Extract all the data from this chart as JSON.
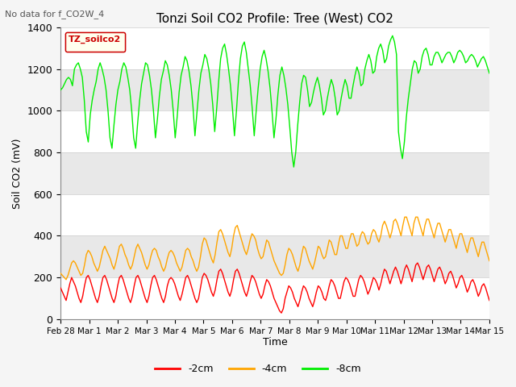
{
  "title": "Tonzi Soil CO2 Profile: Tree (West) CO2",
  "no_data_label": "No data for f_CO2W_4",
  "ylabel": "Soil CO2 (mV)",
  "xlabel": "Time",
  "ylim": [
    0,
    1400
  ],
  "legend_box_label": "TZ_soilco2",
  "line_labels": [
    "-2cm",
    "-4cm",
    "-8cm"
  ],
  "line_colors": [
    "#ff0000",
    "#ffa500",
    "#00ee00"
  ],
  "x_tick_labels": [
    "Feb 28",
    "Mar 1",
    "Mar 2",
    "Mar 3",
    "Mar 4",
    "Mar 5",
    "Mar 6",
    "Mar 7",
    "Mar 8",
    "Mar 9",
    "Mar 10",
    "Mar 11",
    "Mar 12",
    "Mar 13",
    "Mar 14",
    "Mar 15"
  ],
  "band_edges": [
    0,
    200,
    400,
    600,
    800,
    1000,
    1200,
    1400
  ],
  "band_colors": [
    "#ffffff",
    "#e8e8e8",
    "#ffffff",
    "#e8e8e8",
    "#ffffff",
    "#e8e8e8",
    "#ffffff"
  ],
  "yticks": [
    0,
    200,
    400,
    600,
    800,
    1000,
    1200,
    1400
  ],
  "series_2cm": [
    150,
    130,
    110,
    90,
    130,
    170,
    200,
    180,
    160,
    130,
    100,
    80,
    110,
    160,
    200,
    210,
    190,
    160,
    130,
    100,
    80,
    110,
    160,
    200,
    210,
    190,
    160,
    130,
    100,
    80,
    110,
    160,
    200,
    210,
    190,
    160,
    130,
    100,
    80,
    110,
    160,
    200,
    210,
    190,
    160,
    130,
    100,
    80,
    110,
    160,
    200,
    210,
    190,
    160,
    130,
    100,
    80,
    110,
    160,
    190,
    200,
    190,
    170,
    140,
    110,
    90,
    120,
    160,
    200,
    210,
    190,
    160,
    130,
    100,
    80,
    100,
    150,
    200,
    220,
    210,
    190,
    160,
    130,
    110,
    140,
    190,
    230,
    240,
    220,
    190,
    160,
    130,
    110,
    140,
    190,
    230,
    240,
    220,
    190,
    160,
    130,
    110,
    140,
    180,
    210,
    200,
    180,
    150,
    120,
    100,
    120,
    160,
    190,
    180,
    160,
    130,
    100,
    80,
    60,
    40,
    30,
    50,
    100,
    130,
    160,
    150,
    130,
    100,
    80,
    60,
    90,
    130,
    160,
    150,
    130,
    100,
    80,
    60,
    90,
    130,
    160,
    150,
    130,
    100,
    90,
    120,
    160,
    190,
    180,
    160,
    130,
    100,
    100,
    140,
    180,
    200,
    190,
    170,
    140,
    110,
    110,
    150,
    190,
    210,
    200,
    180,
    150,
    120,
    140,
    170,
    200,
    190,
    170,
    140,
    170,
    210,
    240,
    230,
    200,
    170,
    200,
    230,
    250,
    230,
    200,
    170,
    200,
    240,
    260,
    240,
    210,
    180,
    220,
    260,
    270,
    250,
    220,
    190,
    220,
    250,
    260,
    240,
    210,
    180,
    210,
    240,
    250,
    230,
    200,
    170,
    190,
    220,
    230,
    210,
    180,
    150,
    170,
    200,
    210,
    190,
    160,
    130,
    150,
    180,
    190,
    170,
    140,
    110,
    130,
    160,
    170,
    150,
    120,
    90
  ],
  "series_4cm": [
    220,
    210,
    200,
    190,
    210,
    240,
    270,
    280,
    270,
    250,
    230,
    210,
    220,
    260,
    310,
    330,
    320,
    300,
    270,
    250,
    230,
    250,
    290,
    330,
    350,
    330,
    310,
    290,
    260,
    240,
    270,
    310,
    350,
    360,
    340,
    310,
    290,
    260,
    240,
    260,
    300,
    340,
    360,
    340,
    320,
    290,
    260,
    240,
    260,
    300,
    330,
    340,
    330,
    300,
    280,
    250,
    230,
    250,
    290,
    320,
    330,
    320,
    300,
    270,
    250,
    230,
    250,
    290,
    330,
    340,
    330,
    300,
    280,
    250,
    230,
    250,
    300,
    360,
    390,
    380,
    350,
    320,
    290,
    270,
    310,
    370,
    420,
    430,
    410,
    380,
    350,
    320,
    300,
    340,
    400,
    440,
    450,
    420,
    390,
    360,
    330,
    310,
    340,
    380,
    410,
    400,
    380,
    340,
    310,
    290,
    300,
    340,
    380,
    370,
    340,
    310,
    280,
    260,
    240,
    220,
    210,
    220,
    260,
    310,
    340,
    330,
    310,
    280,
    250,
    230,
    260,
    310,
    350,
    340,
    310,
    280,
    260,
    240,
    270,
    310,
    350,
    340,
    310,
    290,
    300,
    340,
    380,
    370,
    340,
    310,
    310,
    360,
    400,
    400,
    370,
    340,
    340,
    380,
    410,
    410,
    380,
    350,
    360,
    400,
    420,
    410,
    380,
    360,
    370,
    410,
    430,
    420,
    390,
    370,
    400,
    450,
    470,
    450,
    420,
    390,
    420,
    470,
    480,
    460,
    430,
    400,
    450,
    490,
    490,
    460,
    430,
    400,
    460,
    490,
    490,
    460,
    430,
    400,
    450,
    480,
    480,
    450,
    420,
    390,
    430,
    460,
    460,
    430,
    400,
    370,
    400,
    430,
    430,
    400,
    370,
    340,
    380,
    410,
    410,
    380,
    350,
    320,
    360,
    390,
    390,
    360,
    330,
    300,
    340,
    370,
    370,
    340,
    310,
    280
  ],
  "series_8cm": [
    1100,
    1110,
    1130,
    1150,
    1160,
    1150,
    1120,
    1200,
    1220,
    1230,
    1200,
    1160,
    1050,
    900,
    850,
    980,
    1050,
    1100,
    1140,
    1200,
    1230,
    1200,
    1160,
    1100,
    1000,
    870,
    820,
    930,
    1030,
    1100,
    1140,
    1200,
    1230,
    1210,
    1160,
    1100,
    1000,
    870,
    820,
    940,
    1050,
    1130,
    1180,
    1230,
    1220,
    1170,
    1100,
    1000,
    870,
    960,
    1070,
    1150,
    1190,
    1240,
    1220,
    1170,
    1100,
    1000,
    870,
    970,
    1090,
    1170,
    1210,
    1260,
    1240,
    1190,
    1120,
    1020,
    880,
    990,
    1100,
    1180,
    1220,
    1270,
    1250,
    1200,
    1130,
    1030,
    900,
    1010,
    1140,
    1250,
    1300,
    1320,
    1270,
    1200,
    1120,
    1010,
    880,
    1000,
    1140,
    1250,
    1310,
    1330,
    1280,
    1200,
    1120,
    1010,
    880,
    1000,
    1110,
    1200,
    1260,
    1290,
    1250,
    1190,
    1110,
    1000,
    870,
    960,
    1080,
    1170,
    1210,
    1170,
    1110,
    1030,
    920,
    800,
    730,
    800,
    930,
    1040,
    1130,
    1170,
    1160,
    1100,
    1020,
    1040,
    1090,
    1130,
    1160,
    1120,
    1060,
    980,
    1000,
    1060,
    1110,
    1150,
    1120,
    1060,
    980,
    1000,
    1060,
    1110,
    1150,
    1120,
    1060,
    1060,
    1120,
    1170,
    1210,
    1180,
    1120,
    1130,
    1200,
    1240,
    1270,
    1240,
    1180,
    1190,
    1260,
    1300,
    1320,
    1290,
    1230,
    1250,
    1310,
    1340,
    1360,
    1330,
    1270,
    900,
    820,
    770,
    850,
    970,
    1060,
    1130,
    1200,
    1240,
    1230,
    1180,
    1200,
    1260,
    1290,
    1300,
    1270,
    1220,
    1220,
    1260,
    1280,
    1280,
    1260,
    1230,
    1250,
    1270,
    1280,
    1280,
    1260,
    1230,
    1250,
    1280,
    1290,
    1280,
    1260,
    1230,
    1240,
    1260,
    1270,
    1260,
    1240,
    1210,
    1230,
    1250,
    1260,
    1240,
    1210,
    1180
  ]
}
